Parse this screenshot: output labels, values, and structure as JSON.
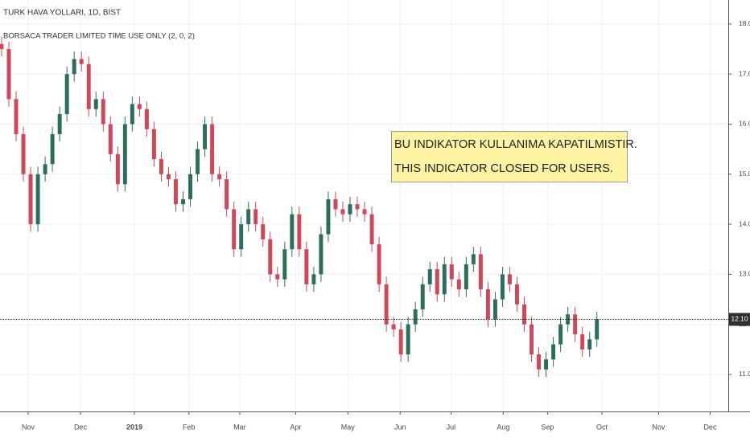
{
  "chart_data": {
    "type": "candlestick",
    "title": "TURK HAVA YOLLARI, 1D, BIST",
    "subtitle": "BORSACA TRADER LIMITED TIME USE ONLY (2, 0, 2)",
    "annotation": [
      "BU INDIKATOR KULLANIMA KAPATILMISTIR.",
      "THIS INDICATOR CLOSED FOR USERS."
    ],
    "up_color": "#2b6e5e",
    "down_color": "#d0475a",
    "open": [
      17.6,
      17.5,
      16.5,
      15.8,
      15.0,
      14.0,
      15.0,
      15.2,
      15.8,
      16.2,
      17.0,
      17.3,
      17.2,
      16.3,
      16.5,
      16.0,
      15.4,
      14.8,
      16.0,
      16.4,
      16.3,
      15.9,
      15.3,
      15.0,
      14.9,
      14.4,
      14.5,
      15.0,
      15.5,
      16.0,
      15.0,
      14.9,
      14.3,
      13.5,
      14.0,
      14.3,
      14.0,
      13.7,
      13.0,
      12.9,
      13.5,
      14.2,
      13.5,
      12.8,
      13.0,
      13.8,
      14.5,
      14.3,
      14.2,
      14.4,
      14.3,
      14.2,
      13.6,
      12.8,
      12.0,
      11.9,
      11.4,
      12.0,
      12.3,
      12.8,
      13.1,
      12.6,
      13.2,
      12.9,
      12.7,
      13.2,
      13.4,
      12.7,
      12.1,
      12.5,
      13.0,
      12.8,
      12.4,
      12.0,
      11.4,
      11.1,
      11.3,
      11.6,
      12.0,
      12.2,
      11.8,
      11.5,
      11.7
    ],
    "high": [
      17.75,
      17.65,
      16.65,
      15.95,
      15.15,
      15.15,
      15.35,
      15.95,
      16.35,
      17.15,
      17.45,
      17.45,
      17.35,
      16.65,
      16.65,
      16.15,
      15.55,
      16.15,
      16.55,
      16.55,
      16.45,
      16.05,
      15.45,
      15.15,
      15.05,
      14.65,
      15.15,
      15.65,
      16.15,
      16.15,
      15.15,
      15.05,
      14.45,
      14.15,
      14.45,
      14.45,
      14.15,
      13.85,
      13.15,
      13.65,
      14.35,
      14.35,
      13.65,
      13.15,
      13.95,
      14.65,
      14.65,
      14.45,
      14.55,
      14.55,
      14.45,
      14.35,
      13.75,
      12.95,
      12.15,
      12.05,
      12.15,
      12.45,
      12.95,
      13.25,
      13.25,
      13.35,
      13.35,
      13.05,
      13.35,
      13.55,
      13.55,
      12.85,
      12.65,
      13.15,
      13.15,
      12.95,
      12.55,
      12.15,
      11.55,
      11.45,
      11.75,
      12.15,
      12.35,
      12.35,
      11.95,
      11.85,
      12.25
    ],
    "low": [
      17.35,
      16.35,
      15.65,
      14.85,
      13.85,
      13.85,
      14.85,
      15.05,
      15.65,
      16.05,
      16.85,
      17.05,
      16.15,
      16.15,
      15.85,
      15.25,
      14.65,
      14.65,
      15.85,
      16.15,
      15.75,
      15.15,
      14.85,
      14.75,
      14.25,
      14.25,
      14.35,
      14.85,
      15.35,
      14.85,
      14.75,
      14.15,
      13.35,
      13.35,
      13.85,
      13.85,
      13.55,
      12.85,
      12.75,
      12.75,
      13.35,
      13.35,
      12.65,
      12.65,
      12.85,
      13.65,
      14.15,
      14.05,
      14.05,
      14.15,
      14.05,
      13.45,
      12.65,
      11.85,
      11.75,
      11.25,
      11.25,
      11.85,
      12.15,
      12.65,
      12.45,
      12.45,
      12.75,
      12.55,
      12.55,
      13.05,
      12.55,
      11.95,
      11.95,
      12.35,
      12.65,
      12.25,
      11.85,
      11.25,
      10.95,
      10.95,
      11.15,
      11.45,
      11.85,
      11.65,
      11.35,
      11.35,
      11.55
    ],
    "close": [
      17.5,
      16.5,
      15.8,
      15.0,
      14.0,
      15.0,
      15.2,
      15.8,
      16.2,
      17.0,
      17.3,
      17.2,
      16.3,
      16.5,
      16.0,
      15.4,
      14.8,
      16.0,
      16.4,
      16.3,
      15.9,
      15.3,
      15.0,
      14.9,
      14.4,
      14.5,
      15.0,
      15.5,
      16.0,
      15.0,
      14.9,
      14.3,
      13.5,
      14.0,
      14.3,
      14.0,
      13.7,
      13.0,
      12.9,
      13.5,
      14.2,
      13.5,
      12.8,
      13.0,
      13.8,
      14.5,
      14.3,
      14.2,
      14.4,
      14.3,
      14.2,
      13.6,
      12.8,
      12.0,
      11.9,
      11.4,
      12.0,
      12.3,
      12.8,
      13.1,
      12.6,
      13.2,
      12.9,
      12.7,
      13.2,
      13.4,
      12.7,
      12.1,
      12.5,
      13.0,
      12.8,
      12.4,
      12.0,
      11.4,
      11.1,
      11.3,
      11.6,
      12.0,
      12.2,
      11.8,
      11.5,
      11.7,
      12.1
    ],
    "last_price": {
      "value": 12.1,
      "label": "12.10"
    },
    "xlim": [
      -0.22,
      100.1
    ],
    "xticks": [
      {
        "value": 3.66,
        "label": "Nov"
      },
      {
        "value": 10.86,
        "label": "Dec"
      },
      {
        "value": 18.3,
        "label": "2019"
      },
      {
        "value": 25.8,
        "label": "Feb"
      },
      {
        "value": 32.8,
        "label": "Mar"
      },
      {
        "value": 40.5,
        "label": "Apr"
      },
      {
        "value": 47.7,
        "label": "May"
      },
      {
        "value": 54.9,
        "label": "Jun"
      },
      {
        "value": 61.9,
        "label": "Jul"
      },
      {
        "value": 69.1,
        "label": "Aug"
      },
      {
        "value": 75.2,
        "label": "Sep"
      },
      {
        "value": 82.7,
        "label": "Oct"
      },
      {
        "value": 90.5,
        "label": "Nov"
      },
      {
        "value": 97.6,
        "label": "Dec"
      }
    ],
    "ylim": [
      10.26,
      18.48
    ],
    "yticks": [
      {
        "value": 11,
        "label": "11.00"
      },
      {
        "value": 12,
        "label": "12.00"
      },
      {
        "value": 13,
        "label": "13.00"
      },
      {
        "value": 14,
        "label": "14.00"
      },
      {
        "value": 15,
        "label": "15.00"
      },
      {
        "value": 16,
        "label": "16.00"
      },
      {
        "value": 17,
        "label": "17.00"
      },
      {
        "value": 18,
        "label": "18.00"
      }
    ],
    "grid": true
  }
}
